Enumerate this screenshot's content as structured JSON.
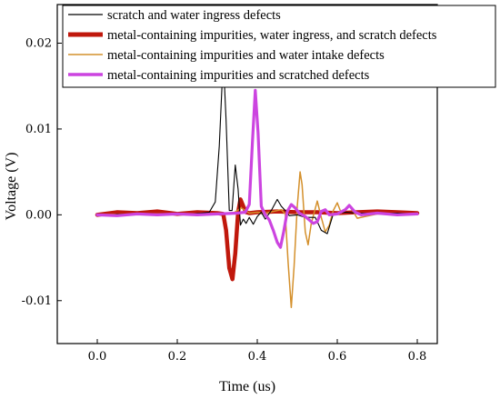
{
  "chart_data": {
    "type": "line",
    "title": "",
    "xlabel": "Time (us)",
    "ylabel": "Voltage (V)",
    "xlim": [
      -0.1,
      0.85
    ],
    "ylim": [
      -0.015,
      0.0245
    ],
    "xticks": [
      {
        "value": 0.0,
        "label": "0.0"
      },
      {
        "value": 0.2,
        "label": "0.2"
      },
      {
        "value": 0.4,
        "label": "0.4"
      },
      {
        "value": 0.6,
        "label": "0.6"
      },
      {
        "value": 0.8,
        "label": "0.8"
      }
    ],
    "yticks": [
      {
        "value": 0.02,
        "label": "0.02"
      },
      {
        "value": 0.01,
        "label": "0.01"
      },
      {
        "value": 0.0,
        "label": "0.00"
      },
      {
        "value": -0.01,
        "label": "-0.01"
      }
    ],
    "grid": false,
    "legend_position": "top",
    "series": [
      {
        "name": "scratch and water ingress defects",
        "color": "#000000",
        "points": [
          [
            0.0,
            0.0
          ],
          [
            0.1,
            0.0001
          ],
          [
            0.2,
            0.0
          ],
          [
            0.26,
            0.0002
          ],
          [
            0.28,
            0.0003
          ],
          [
            0.295,
            0.0015
          ],
          [
            0.305,
            0.008
          ],
          [
            0.315,
            0.0183
          ],
          [
            0.322,
            0.011
          ],
          [
            0.33,
            0.0005
          ],
          [
            0.337,
            0.0005
          ],
          [
            0.345,
            0.0058
          ],
          [
            0.352,
            0.003
          ],
          [
            0.358,
            -0.0012
          ],
          [
            0.365,
            -0.0005
          ],
          [
            0.372,
            -0.001
          ],
          [
            0.38,
            -0.0003
          ],
          [
            0.39,
            -0.0011
          ],
          [
            0.4,
            -0.0002
          ],
          [
            0.41,
            0.0003
          ],
          [
            0.42,
            -0.0005
          ],
          [
            0.435,
            0.0005
          ],
          [
            0.45,
            0.0018
          ],
          [
            0.46,
            0.001
          ],
          [
            0.47,
            0.0005
          ],
          [
            0.48,
            -0.0001
          ],
          [
            0.5,
            0.0
          ],
          [
            0.52,
            -0.0003
          ],
          [
            0.545,
            -0.0003
          ],
          [
            0.56,
            -0.0018
          ],
          [
            0.575,
            -0.0022
          ],
          [
            0.59,
            0.0001
          ],
          [
            0.62,
            0.0003
          ],
          [
            0.65,
            0.0002
          ],
          [
            0.7,
            0.0002
          ],
          [
            0.75,
            0.0002
          ],
          [
            0.8,
            0.0001
          ]
        ]
      },
      {
        "name": "metal-containing impurities, water ingress, and scratch defects",
        "color": "#c0180c",
        "points": [
          [
            0.0,
            0.0
          ],
          [
            0.05,
            0.0003
          ],
          [
            0.1,
            0.0002
          ],
          [
            0.15,
            0.0004
          ],
          [
            0.2,
            0.0001
          ],
          [
            0.25,
            0.0003
          ],
          [
            0.3,
            0.0002
          ],
          [
            0.315,
            0.0001
          ],
          [
            0.322,
            -0.0018
          ],
          [
            0.33,
            -0.0062
          ],
          [
            0.338,
            -0.0075
          ],
          [
            0.345,
            -0.0045
          ],
          [
            0.352,
            0.0003
          ],
          [
            0.358,
            0.0018
          ],
          [
            0.365,
            0.001
          ],
          [
            0.372,
            0.0003
          ],
          [
            0.38,
            0.0002
          ],
          [
            0.4,
            0.0003
          ],
          [
            0.45,
            0.0004
          ],
          [
            0.5,
            0.0003
          ],
          [
            0.55,
            0.0003
          ],
          [
            0.6,
            0.0002
          ],
          [
            0.65,
            0.0003
          ],
          [
            0.7,
            0.0004
          ],
          [
            0.75,
            0.0003
          ],
          [
            0.8,
            0.0002
          ]
        ]
      },
      {
        "name": "metal-containing impurities and water intake defects",
        "color": "#d4902c",
        "points": [
          [
            0.0,
            0.0
          ],
          [
            0.1,
            0.0001
          ],
          [
            0.2,
            0.0001
          ],
          [
            0.3,
            0.0001
          ],
          [
            0.34,
            0.0002
          ],
          [
            0.36,
            0.0008
          ],
          [
            0.38,
            0.0002
          ],
          [
            0.4,
            0.0003
          ],
          [
            0.42,
            0.0002
          ],
          [
            0.44,
            0.0004
          ],
          [
            0.46,
            0.0006
          ],
          [
            0.47,
            0.0001
          ],
          [
            0.477,
            -0.0055
          ],
          [
            0.485,
            -0.0108
          ],
          [
            0.492,
            -0.006
          ],
          [
            0.5,
            0.001
          ],
          [
            0.507,
            0.005
          ],
          [
            0.512,
            0.0035
          ],
          [
            0.52,
            -0.002
          ],
          [
            0.527,
            -0.0035
          ],
          [
            0.535,
            -0.001
          ],
          [
            0.55,
            0.0016
          ],
          [
            0.56,
            -0.0003
          ],
          [
            0.57,
            -0.002
          ],
          [
            0.58,
            -0.0012
          ],
          [
            0.59,
            0.0005
          ],
          [
            0.6,
            0.0014
          ],
          [
            0.61,
            0.0002
          ],
          [
            0.63,
            0.0011
          ],
          [
            0.65,
            -0.0004
          ],
          [
            0.67,
            -0.0002
          ],
          [
            0.7,
            0.0001
          ],
          [
            0.75,
            0.0001
          ],
          [
            0.8,
            0.0001
          ]
        ]
      },
      {
        "name": "metal-containing impurities and scratched defects",
        "color": "#cc44e0",
        "points": [
          [
            0.0,
            0.0
          ],
          [
            0.05,
            -0.0001
          ],
          [
            0.1,
            0.0001
          ],
          [
            0.15,
            0.0
          ],
          [
            0.2,
            0.0001
          ],
          [
            0.25,
            0.0
          ],
          [
            0.3,
            0.0001
          ],
          [
            0.35,
            0.0002
          ],
          [
            0.37,
            0.0003
          ],
          [
            0.38,
            0.0012
          ],
          [
            0.388,
            0.0085
          ],
          [
            0.395,
            0.0145
          ],
          [
            0.402,
            0.0095
          ],
          [
            0.41,
            0.001
          ],
          [
            0.42,
            0.0
          ],
          [
            0.43,
            -0.0006
          ],
          [
            0.44,
            -0.0018
          ],
          [
            0.45,
            -0.0032
          ],
          [
            0.458,
            -0.0038
          ],
          [
            0.466,
            -0.002
          ],
          [
            0.475,
            0.0004
          ],
          [
            0.485,
            0.0012
          ],
          [
            0.495,
            0.0008
          ],
          [
            0.505,
            0.0002
          ],
          [
            0.52,
            -0.0002
          ],
          [
            0.54,
            -0.001
          ],
          [
            0.55,
            -0.0008
          ],
          [
            0.56,
            0.0004
          ],
          [
            0.57,
            0.0006
          ],
          [
            0.58,
            0.0
          ],
          [
            0.6,
            0.0001
          ],
          [
            0.62,
            0.0006
          ],
          [
            0.63,
            0.0011
          ],
          [
            0.645,
            0.0003
          ],
          [
            0.66,
            0.0
          ],
          [
            0.7,
            0.0002
          ],
          [
            0.75,
            0.0
          ],
          [
            0.8,
            0.0001
          ]
        ]
      }
    ]
  }
}
